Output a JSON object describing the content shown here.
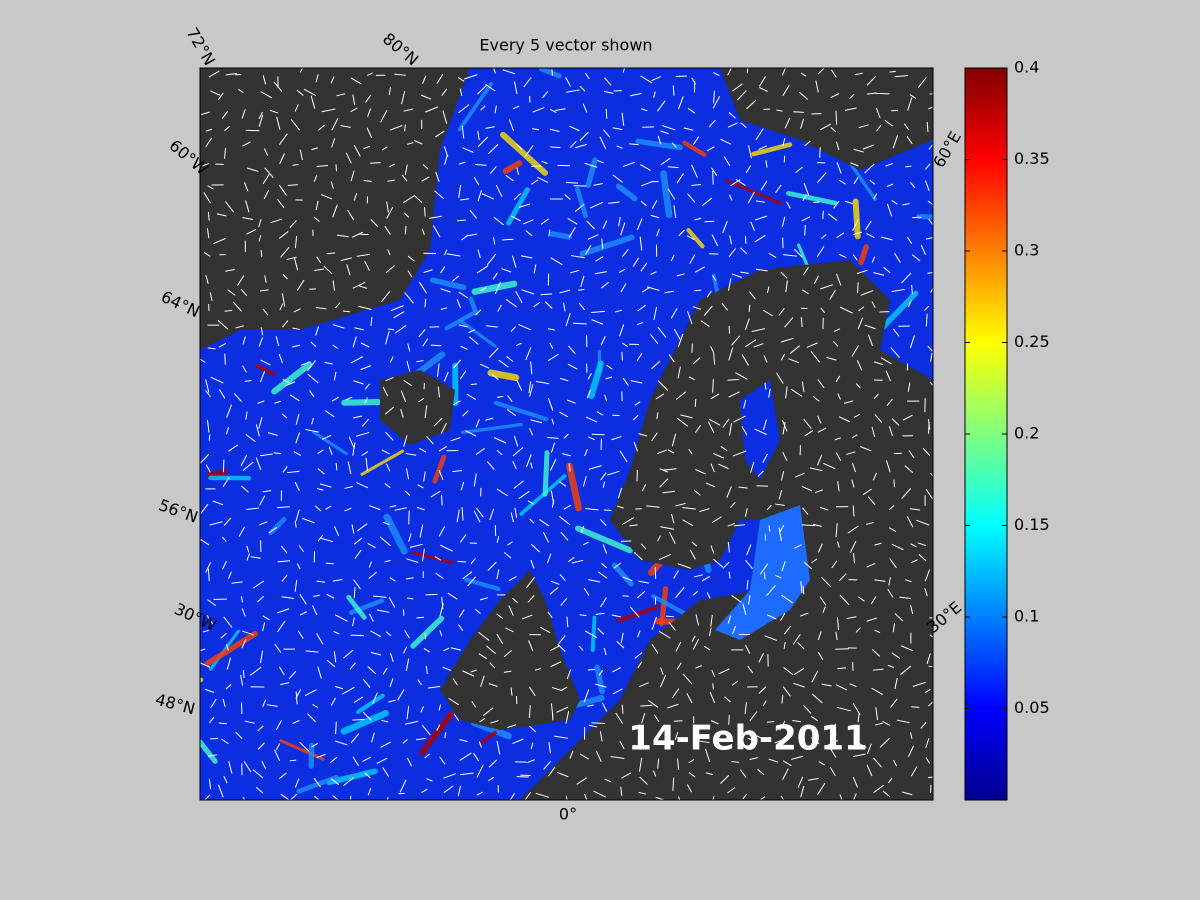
{
  "title": "Every 5 vector shown",
  "date_label": "14-Feb-2011",
  "graticule_labels": [
    "72°N",
    "80°N",
    "60°W",
    "64°N",
    "56°N",
    "30°W",
    "48°N",
    "0°",
    "30°E",
    "60°E"
  ],
  "colorbar": {
    "lim": [
      0,
      0.4
    ],
    "ticks": [
      0.05,
      0.1,
      0.15,
      0.2,
      0.25,
      0.3,
      0.35,
      0.4
    ]
  }
}
